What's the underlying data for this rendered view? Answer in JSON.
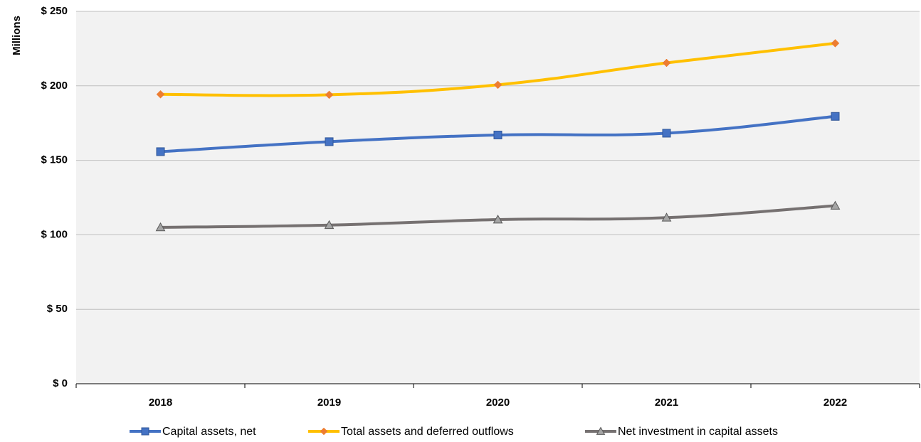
{
  "chart_data": {
    "type": "line",
    "title": "",
    "xlabel": "",
    "ylabel": "Millions",
    "categories": [
      "2018",
      "2019",
      "2020",
      "2021",
      "2022"
    ],
    "ylim": [
      0,
      250
    ],
    "yticks": [
      0,
      50,
      100,
      150,
      200,
      250
    ],
    "ytick_labels": [
      "$ 0",
      "$ 50",
      "$ 100",
      "$ 150",
      "$ 200",
      "$ 250"
    ],
    "grid": true,
    "legend_position": "bottom",
    "plot_background": "#f2f2f2",
    "series": [
      {
        "name": "Capital assets, net",
        "values": [
          155.8,
          162.5,
          167.0,
          168.2,
          179.5
        ],
        "color": "#4472c4",
        "marker": "square"
      },
      {
        "name": "Total assets and deferred outflows",
        "values": [
          194.3,
          194.0,
          200.7,
          215.4,
          228.6
        ],
        "color": "#ffc000",
        "marker_color": "#ed7d31",
        "marker": "diamond"
      },
      {
        "name": "Net investment in capital assets",
        "values": [
          105.0,
          106.5,
          110.2,
          111.5,
          119.5
        ],
        "color": "#767171",
        "marker_color": "#a5a5a5",
        "marker": "triangle"
      }
    ]
  }
}
